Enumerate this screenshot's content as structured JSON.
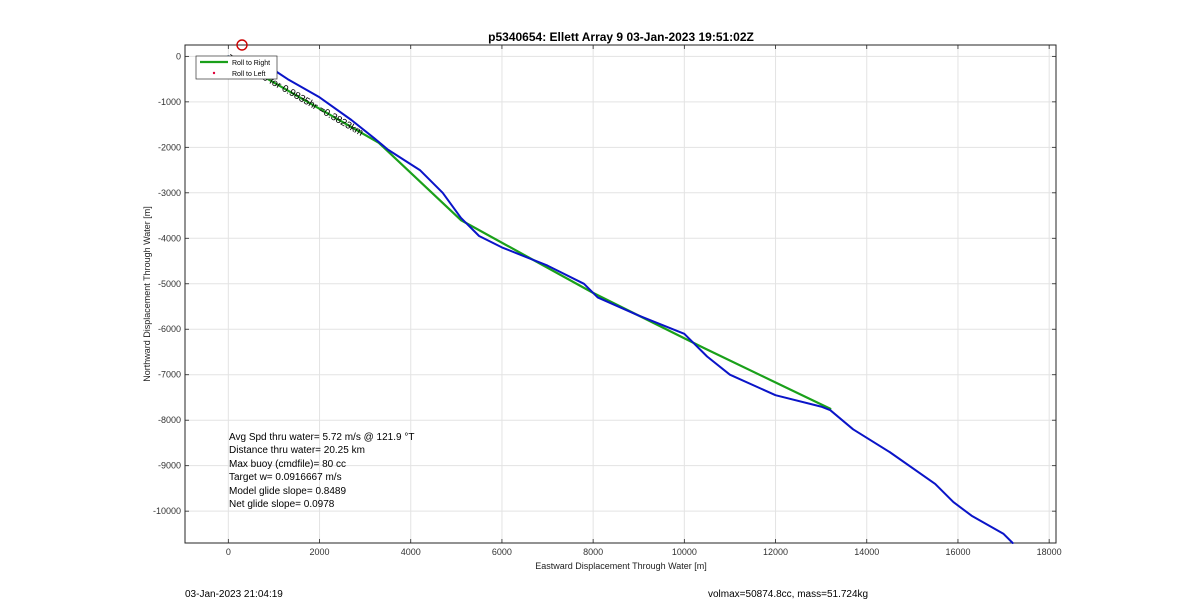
{
  "chart_data": {
    "type": "line",
    "title": "p5340654: Ellett Array 9 03-Jan-2023 19:51:02Z",
    "xlabel": "Eastward Displacement Through Water [m]",
    "ylabel": "Northward Displacement Through Water [m]",
    "xlim": [
      -950,
      18150
    ],
    "ylim": [
      -10700,
      250
    ],
    "xticks": [
      0,
      2000,
      4000,
      6000,
      8000,
      10000,
      12000,
      14000,
      16000,
      18000
    ],
    "yticks": [
      0,
      -1000,
      -2000,
      -3000,
      -4000,
      -5000,
      -6000,
      -7000,
      -8000,
      -9000,
      -10000
    ],
    "grid": true,
    "legend": {
      "location": "top-left",
      "entries": [
        "Roll to Right",
        "Roll to Left"
      ]
    },
    "series": [
      {
        "name": "",
        "color": "#1aa01a",
        "x": [
          0,
          3300,
          5100,
          8000,
          10400,
          13200
        ],
        "y": [
          0,
          -1900,
          -3600,
          -5200,
          -6400,
          -7750
        ]
      },
      {
        "name": "",
        "color": "#0a14c8",
        "x": [
          0,
          1000,
          1300,
          2000,
          2700,
          3200,
          3500,
          4200,
          4700,
          5100,
          5500,
          6000,
          7000,
          7800,
          8100,
          9000,
          10000,
          10500,
          11000,
          12000,
          13000,
          13200,
          13700,
          14500,
          15500,
          15900,
          16300,
          17000,
          17200
        ],
        "y": [
          0,
          -300,
          -500,
          -900,
          -1400,
          -1800,
          -2050,
          -2500,
          -3000,
          -3550,
          -3950,
          -4200,
          -4600,
          -5000,
          -5300,
          -5700,
          -6100,
          -6600,
          -7000,
          -7450,
          -7700,
          -7780,
          -8200,
          -8700,
          -9400,
          -9800,
          -10100,
          -10500,
          -10700
        ]
      }
    ],
    "annotations": [
      {
        "text": "0.0cm/s for 0.9835hr =0.3823km"
      }
    ],
    "stats": [
      "Avg Spd thru water=  5.72 m/s @ 121.9 °T",
      "Distance thru water= 20.25 km",
      "Max buoy (cmdfile)= 80 cc",
      "Target w= 0.0916667 m/s",
      "Model glide slope= 0.8489",
      "Net glide slope= 0.0978"
    ]
  },
  "footer": {
    "timestamp": "03-Jan-2023 21:04:19",
    "info": "volmax=50874.8cc, mass=51.724kg"
  },
  "colors": {
    "gps_marker": "#cc0000",
    "roll_left_marker": "#e0003a"
  }
}
